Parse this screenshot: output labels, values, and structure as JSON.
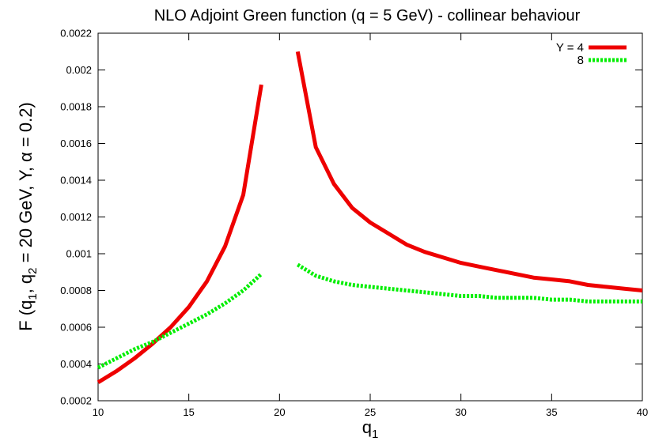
{
  "chart_data": {
    "type": "line",
    "title": "NLO Adjoint Green function (q = 5 GeV) - collinear behaviour",
    "xlabel": "q",
    "xlabel_sub": "1",
    "ylabel_parts": [
      {
        "text": "F (q"
      },
      {
        "text": "1",
        "sub": true
      },
      {
        "text": ", q"
      },
      {
        "text": "2",
        "sub": true
      },
      {
        "text": " = 20 GeV, Y, α = 0.2)"
      }
    ],
    "xlim": [
      10,
      40
    ],
    "ylim": [
      0.0002,
      0.0022
    ],
    "xticks": [
      10,
      15,
      20,
      25,
      30,
      35,
      40
    ],
    "xtick_labels": [
      "10",
      "15",
      "20",
      "25",
      "30",
      "35",
      "40"
    ],
    "yticks": [
      0.0002,
      0.0004,
      0.0006,
      0.0008,
      0.001,
      0.0012,
      0.0014,
      0.0016,
      0.0018,
      0.002,
      0.0022
    ],
    "ytick_labels": [
      "0.0002",
      "0.0004",
      "0.0006",
      "0.0008",
      "0.001",
      "0.0012",
      "0.0014",
      "0.0016",
      "0.0018",
      "0.002",
      "0.0022"
    ],
    "grid": false,
    "legend_position": "top-right",
    "series": [
      {
        "name": "Y = 4",
        "color": "#ee0000",
        "style": "solid",
        "segments": [
          {
            "x": [
              10,
              11,
              12,
              13,
              14,
              15,
              16,
              17,
              18,
              19
            ],
            "y": [
              0.0003,
              0.00036,
              0.00043,
              0.00051,
              0.0006,
              0.00071,
              0.00085,
              0.00104,
              0.00132,
              0.00192
            ]
          },
          {
            "x": [
              21,
              22,
              23,
              24,
              25,
              26,
              27,
              28,
              29,
              30,
              31,
              32,
              33,
              34,
              35,
              36,
              37,
              38,
              39,
              40
            ],
            "y": [
              0.0021,
              0.00158,
              0.00138,
              0.00125,
              0.00117,
              0.00111,
              0.00105,
              0.00101,
              0.00098,
              0.00095,
              0.00093,
              0.00091,
              0.00089,
              0.00087,
              0.00086,
              0.00085,
              0.00083,
              0.00082,
              0.00081,
              0.0008
            ]
          }
        ]
      },
      {
        "name": "8",
        "color": "#00ee00",
        "style": "dotted",
        "segments": [
          {
            "x": [
              10,
              11,
              12,
              13,
              14,
              15,
              16,
              17,
              18,
              19
            ],
            "y": [
              0.00038,
              0.00043,
              0.00048,
              0.00052,
              0.00057,
              0.00062,
              0.00067,
              0.00073,
              0.0008,
              0.00089
            ]
          },
          {
            "x": [
              21,
              22,
              23,
              24,
              25,
              26,
              27,
              28,
              29,
              30,
              31,
              32,
              33,
              34,
              35,
              36,
              37,
              38,
              39,
              40
            ],
            "y": [
              0.00094,
              0.00088,
              0.00085,
              0.00083,
              0.00082,
              0.00081,
              0.0008,
              0.00079,
              0.00078,
              0.00077,
              0.00077,
              0.00076,
              0.00076,
              0.00076,
              0.00075,
              0.00075,
              0.00074,
              0.00074,
              0.00074,
              0.00074
            ]
          }
        ]
      }
    ]
  }
}
